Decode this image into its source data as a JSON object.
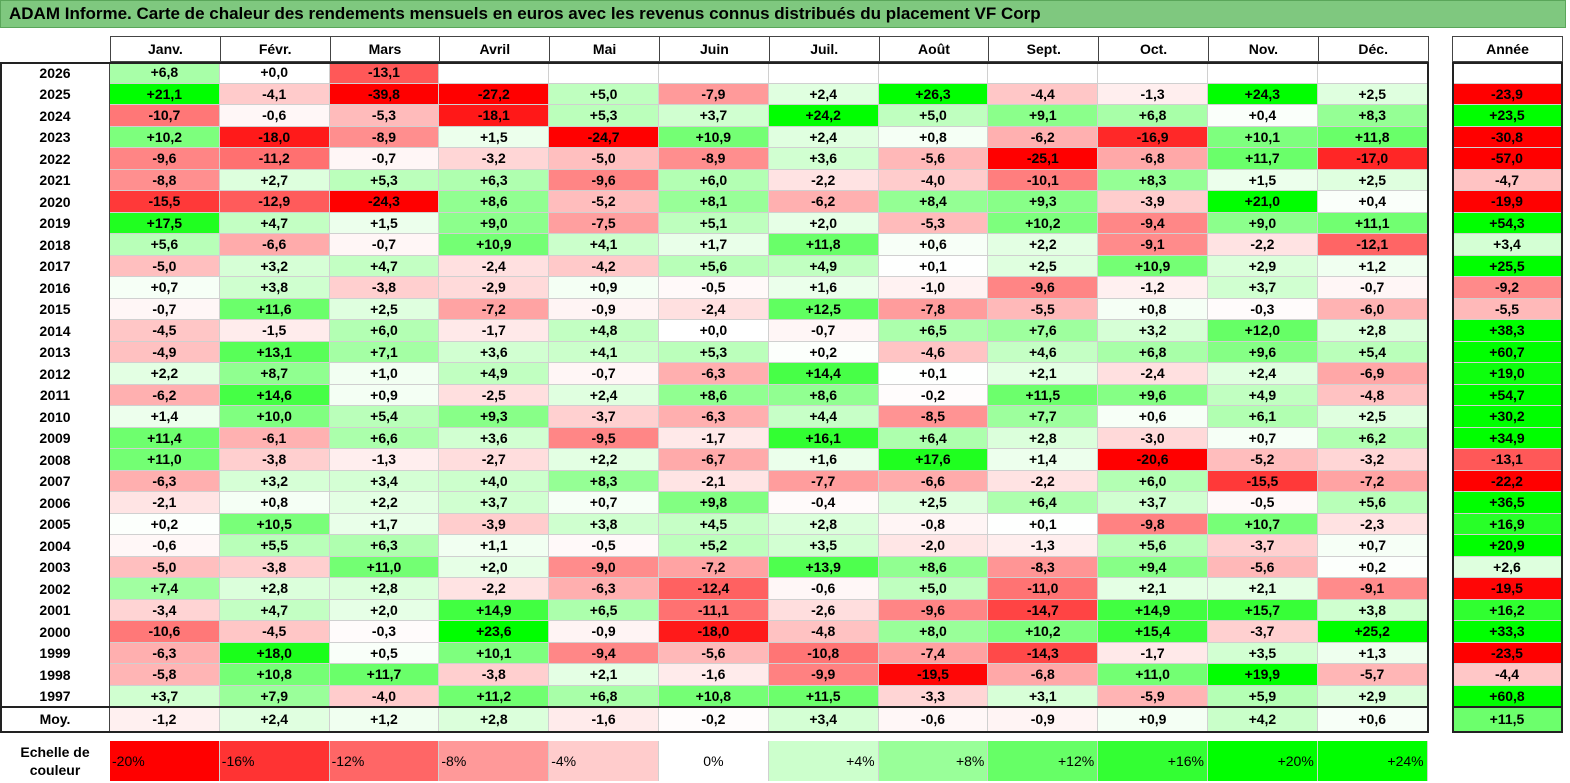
{
  "title": "ADAM Informe. Carte de chaleur des rendements mensuels en euros avec les revenus connus distribués du placement VF Corp",
  "chart_data": {
    "type": "heatmap",
    "months": [
      "Janv.",
      "Févr.",
      "Mars",
      "Avril",
      "Mai",
      "Juin",
      "Juil.",
      "Août",
      "Sept.",
      "Oct.",
      "Nov.",
      "Déc."
    ],
    "year_header": "Année",
    "rows": [
      {
        "year": "2026",
        "values": [
          "+6,8",
          "+0,0",
          "-13,1",
          "",
          "",
          "",
          "",
          "",
          "",
          "",
          "",
          ""
        ],
        "annual": ""
      },
      {
        "year": "2025",
        "values": [
          "+21,1",
          "-4,1",
          "-39,8",
          "-27,2",
          "+5,0",
          "-7,9",
          "+2,4",
          "+26,3",
          "-4,4",
          "-1,3",
          "+24,3",
          "+2,5"
        ],
        "annual": "-23,9"
      },
      {
        "year": "2024",
        "values": [
          "-10,7",
          "-0,6",
          "-5,3",
          "-18,1",
          "+5,3",
          "+3,7",
          "+24,2",
          "+5,0",
          "+9,1",
          "+6,8",
          "+0,4",
          "+8,3"
        ],
        "annual": "+23,5"
      },
      {
        "year": "2023",
        "values": [
          "+10,2",
          "-18,0",
          "-8,9",
          "+1,5",
          "-24,7",
          "+10,9",
          "+2,4",
          "+0,8",
          "-6,2",
          "-16,9",
          "+10,1",
          "+11,8"
        ],
        "annual": "-30,8"
      },
      {
        "year": "2022",
        "values": [
          "-9,6",
          "-11,2",
          "-0,7",
          "-3,2",
          "-5,0",
          "-8,9",
          "+3,6",
          "-5,6",
          "-25,1",
          "-6,8",
          "+11,7",
          "-17,0"
        ],
        "annual": "-57,0"
      },
      {
        "year": "2021",
        "values": [
          "-8,8",
          "+2,7",
          "+5,3",
          "+6,3",
          "-9,6",
          "+6,0",
          "-2,2",
          "-4,0",
          "-10,1",
          "+8,3",
          "+1,5",
          "+2,5"
        ],
        "annual": "-4,7"
      },
      {
        "year": "2020",
        "values": [
          "-15,5",
          "-12,9",
          "-24,3",
          "+8,6",
          "-5,2",
          "+8,1",
          "-6,2",
          "+8,4",
          "+9,3",
          "-3,9",
          "+21,0",
          "+0,4"
        ],
        "annual": "-19,9"
      },
      {
        "year": "2019",
        "values": [
          "+17,5",
          "+4,7",
          "+1,5",
          "+9,0",
          "-7,5",
          "+5,1",
          "+2,0",
          "-5,3",
          "+10,2",
          "-9,4",
          "+9,0",
          "+11,1"
        ],
        "annual": "+54,3"
      },
      {
        "year": "2018",
        "values": [
          "+5,6",
          "-6,6",
          "-0,7",
          "+10,9",
          "+4,1",
          "+1,7",
          "+11,8",
          "+0,6",
          "+2,2",
          "-9,1",
          "-2,2",
          "-12,1"
        ],
        "annual": "+3,4"
      },
      {
        "year": "2017",
        "values": [
          "-5,0",
          "+3,2",
          "+4,7",
          "-2,4",
          "-4,2",
          "+5,6",
          "+4,9",
          "+0,1",
          "+2,5",
          "+10,9",
          "+2,9",
          "+1,2"
        ],
        "annual": "+25,5"
      },
      {
        "year": "2016",
        "values": [
          "+0,7",
          "+3,8",
          "-3,8",
          "-2,9",
          "+0,9",
          "-0,5",
          "+1,6",
          "-1,0",
          "-9,6",
          "-1,2",
          "+3,7",
          "-0,7"
        ],
        "annual": "-9,2"
      },
      {
        "year": "2015",
        "values": [
          "-0,7",
          "+11,6",
          "+2,5",
          "-7,2",
          "-0,9",
          "-2,4",
          "+12,5",
          "-7,8",
          "-5,5",
          "+0,8",
          "-0,3",
          "-6,0"
        ],
        "annual": "-5,5"
      },
      {
        "year": "2014",
        "values": [
          "-4,5",
          "-1,5",
          "+6,0",
          "-1,7",
          "+4,8",
          "+0,0",
          "-0,7",
          "+6,5",
          "+7,6",
          "+3,2",
          "+12,0",
          "+2,8"
        ],
        "annual": "+38,3"
      },
      {
        "year": "2013",
        "values": [
          "-4,9",
          "+13,1",
          "+7,1",
          "+3,6",
          "+4,1",
          "+5,3",
          "+0,2",
          "-4,6",
          "+4,6",
          "+6,8",
          "+9,6",
          "+5,4"
        ],
        "annual": "+60,7"
      },
      {
        "year": "2012",
        "values": [
          "+2,2",
          "+8,7",
          "+1,0",
          "+4,9",
          "-0,7",
          "-6,3",
          "+14,4",
          "+0,1",
          "+2,1",
          "-2,4",
          "+2,4",
          "-6,9"
        ],
        "annual": "+19,0"
      },
      {
        "year": "2011",
        "values": [
          "-6,2",
          "+14,6",
          "+0,9",
          "-2,5",
          "+2,4",
          "+8,6",
          "+8,6",
          "-0,2",
          "+11,5",
          "+9,6",
          "+4,9",
          "-4,8"
        ],
        "annual": "+54,7"
      },
      {
        "year": "2010",
        "values": [
          "+1,4",
          "+10,0",
          "+5,4",
          "+9,3",
          "-3,7",
          "-6,3",
          "+4,4",
          "-8,5",
          "+7,7",
          "+0,6",
          "+6,1",
          "+2,5"
        ],
        "annual": "+30,2"
      },
      {
        "year": "2009",
        "values": [
          "+11,4",
          "-6,1",
          "+6,6",
          "+3,6",
          "-9,5",
          "-1,7",
          "+16,1",
          "+6,4",
          "+2,8",
          "-3,0",
          "+0,7",
          "+6,2"
        ],
        "annual": "+34,9"
      },
      {
        "year": "2008",
        "values": [
          "+11,0",
          "-3,8",
          "-1,3",
          "-2,7",
          "+2,2",
          "-6,7",
          "+1,6",
          "+17,6",
          "+1,4",
          "-20,6",
          "-5,2",
          "-3,2"
        ],
        "annual": "-13,1"
      },
      {
        "year": "2007",
        "values": [
          "-6,3",
          "+3,2",
          "+3,4",
          "+4,0",
          "+8,3",
          "-2,1",
          "-7,7",
          "-6,6",
          "-2,2",
          "+6,0",
          "-15,5",
          "-7,2"
        ],
        "annual": "-22,2"
      },
      {
        "year": "2006",
        "values": [
          "-2,1",
          "+0,8",
          "+2,2",
          "+3,7",
          "+0,7",
          "+9,8",
          "-0,4",
          "+2,5",
          "+6,4",
          "+3,7",
          "-0,5",
          "+5,6"
        ],
        "annual": "+36,5"
      },
      {
        "year": "2005",
        "values": [
          "+0,2",
          "+10,5",
          "+1,7",
          "-3,9",
          "+3,8",
          "+4,5",
          "+2,8",
          "-0,8",
          "+0,1",
          "-9,8",
          "+10,7",
          "-2,3"
        ],
        "annual": "+16,9"
      },
      {
        "year": "2004",
        "values": [
          "-0,6",
          "+5,5",
          "+6,3",
          "+1,1",
          "-0,5",
          "+5,2",
          "+3,5",
          "-2,0",
          "-1,3",
          "+5,6",
          "-3,7",
          "+0,7"
        ],
        "annual": "+20,9"
      },
      {
        "year": "2003",
        "values": [
          "-5,0",
          "-3,8",
          "+11,0",
          "+2,0",
          "-9,0",
          "-7,2",
          "+13,9",
          "+8,6",
          "-8,3",
          "+9,4",
          "-5,6",
          "+0,2"
        ],
        "annual": "+2,6"
      },
      {
        "year": "2002",
        "values": [
          "+7,4",
          "+2,8",
          "+2,8",
          "-2,2",
          "-6,3",
          "-12,4",
          "-0,6",
          "+5,0",
          "-11,0",
          "+2,1",
          "+2,1",
          "-9,1"
        ],
        "annual": "-19,5"
      },
      {
        "year": "2001",
        "values": [
          "-3,4",
          "+4,7",
          "+2,0",
          "+14,9",
          "+6,5",
          "-11,1",
          "-2,6",
          "-9,6",
          "-14,7",
          "+14,9",
          "+15,7",
          "+3,8"
        ],
        "annual": "+16,2"
      },
      {
        "year": "2000",
        "values": [
          "-10,6",
          "-4,5",
          "-0,3",
          "+23,6",
          "-0,9",
          "-18,0",
          "-4,8",
          "+8,0",
          "+10,2",
          "+15,4",
          "-3,7",
          "+25,2"
        ],
        "annual": "+33,3"
      },
      {
        "year": "1999",
        "values": [
          "-6,3",
          "+18,0",
          "+0,5",
          "+10,1",
          "-9,4",
          "-5,6",
          "-10,8",
          "-7,4",
          "-14,3",
          "-1,7",
          "+3,5",
          "+1,3"
        ],
        "annual": "-23,5"
      },
      {
        "year": "1998",
        "values": [
          "-5,8",
          "+10,8",
          "+11,7",
          "-3,8",
          "+2,1",
          "-1,6",
          "-9,9",
          "-19,5",
          "-6,8",
          "+11,0",
          "+19,9",
          "-5,7"
        ],
        "annual": "-4,4"
      },
      {
        "year": "1997",
        "values": [
          "+3,7",
          "+7,9",
          "-4,0",
          "+11,2",
          "+6,8",
          "+10,8",
          "+11,5",
          "-3,3",
          "+3,1",
          "-5,9",
          "+5,9",
          "+2,9"
        ],
        "annual": "+60,8"
      }
    ],
    "average": {
      "label": "Moy.",
      "values": [
        "-1,2",
        "+2,4",
        "+1,2",
        "+2,8",
        "-1,6",
        "-0,2",
        "+3,4",
        "-0,6",
        "-0,9",
        "+0,9",
        "+4,2",
        "+0,6"
      ],
      "annual": "+11,5"
    },
    "scale": {
      "label_line1": "Echelle de",
      "label_line2": "couleur",
      "steps": [
        "-20%",
        "-16%",
        "-12%",
        "-8%",
        "-4%",
        "0%",
        "+4%",
        "+8%",
        "+12%",
        "+16%",
        "+20%",
        "+24%"
      ],
      "step_values": [
        -20,
        -16,
        -12,
        -8,
        -4,
        0,
        4,
        8,
        12,
        16,
        20,
        24
      ]
    },
    "colors": {
      "negative": "#ff0000",
      "neutral": "#ffffff",
      "positive": "#00ff00"
    }
  }
}
